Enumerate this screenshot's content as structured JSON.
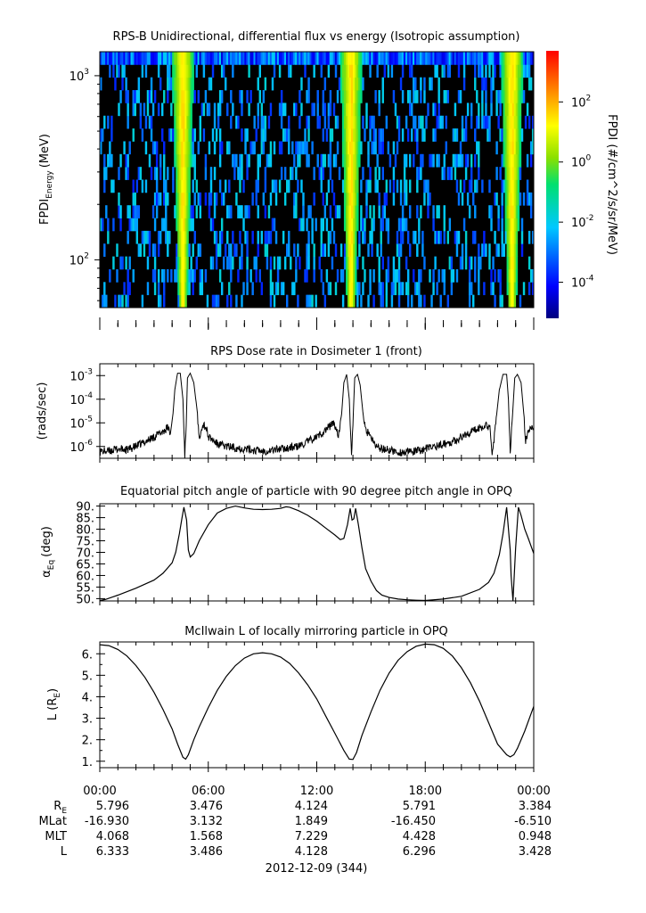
{
  "figure": {
    "x_axis": {
      "tick_labels": [
        "00:00",
        "06:00",
        "12:00",
        "18:00",
        "00:00"
      ],
      "date_label": "2012-12-09 (344)"
    }
  },
  "ephemeris": {
    "rows": [
      {
        "label": "R",
        "label_sub": "E",
        "values": [
          "5.796",
          "3.476",
          "4.124",
          "5.791",
          "3.384"
        ]
      },
      {
        "label": "MLat",
        "label_sub": "",
        "values": [
          "-16.930",
          "3.132",
          "1.849",
          "-16.450",
          "-6.510"
        ]
      },
      {
        "label": "MLT",
        "label_sub": "",
        "values": [
          "4.068",
          "1.568",
          "7.229",
          "4.428",
          "0.948"
        ]
      },
      {
        "label": "L",
        "label_sub": "",
        "values": [
          "6.333",
          "3.486",
          "4.128",
          "6.296",
          "3.428"
        ]
      }
    ]
  },
  "chart_data": [
    {
      "type": "heatmap",
      "title": "RPS-B  Unidirectional, differential flux vs energy (Isotropic assumption)",
      "ylabel": "FPDI",
      "ylabel_sub": "Energy",
      "ylabel_unit": "(MeV)",
      "y_scale": "log",
      "yticks": [
        {
          "value": 100,
          "base": "10",
          "exp": "2"
        },
        {
          "value": 1000,
          "base": "10",
          "exp": "3"
        }
      ],
      "ylim": [
        55,
        1350
      ],
      "x_hours": [
        0,
        24
      ],
      "colorbar": {
        "label": "FPDI (#/cm^2/s/sr/MeV)",
        "scale": "log",
        "ticks": [
          {
            "value": -4,
            "base": "10",
            "exp": "-4"
          },
          {
            "value": -2,
            "base": "10",
            "exp": "-2"
          },
          {
            "value": 0,
            "base": "10",
            "exp": "0"
          },
          {
            "value": 2,
            "base": "10",
            "exp": "2"
          }
        ],
        "range_log10": [
          -5.2,
          3.7
        ]
      },
      "features": {
        "belt_crossing_hours": [
          4.6,
          13.9,
          22.8
        ],
        "background": "sparse noise, black = no data"
      }
    },
    {
      "type": "line",
      "title": "RPS  Dose rate in Dosimeter 1 (front)",
      "ylabel": "(rads/sec)",
      "y_scale": "log",
      "yticks": [
        {
          "value": -6,
          "base": "10",
          "exp": "-6"
        },
        {
          "value": -5,
          "base": "10",
          "exp": "-5"
        },
        {
          "value": -4,
          "base": "10",
          "exp": "-4"
        },
        {
          "value": -3,
          "base": "10",
          "exp": "-3"
        }
      ],
      "ylim_log10": [
        -6.5,
        -2.5
      ],
      "x_hours": [
        0,
        24
      ],
      "series": [
        {
          "x": [
            0.0,
            0.5,
            1.0,
            1.5,
            2.0,
            2.5,
            3.0,
            3.5,
            3.8,
            3.9,
            4.05,
            4.15,
            4.3,
            4.45,
            4.6,
            4.7,
            4.78,
            4.85,
            5.0,
            5.2,
            5.4,
            5.5,
            5.6,
            5.75,
            5.9,
            6.0,
            6.2,
            6.5,
            7.0,
            8.0,
            9.0,
            10.0,
            11.0,
            11.5,
            12.0,
            12.5,
            12.9,
            13.05,
            13.2,
            13.35,
            13.5,
            13.65,
            13.8,
            13.92,
            14.0,
            14.1,
            14.25,
            14.4,
            14.6,
            14.75,
            14.85,
            15.0,
            15.2,
            15.5,
            16.0,
            16.5,
            17.0,
            17.5,
            18.0,
            18.5,
            19.0,
            19.5,
            20.0,
            20.5,
            21.0,
            21.4,
            21.6,
            21.7,
            21.9,
            22.1,
            22.3,
            22.5,
            22.6,
            22.7,
            22.8,
            22.95,
            23.1,
            23.3,
            23.45,
            23.55,
            23.7,
            23.85,
            24.0
          ],
          "y": [
            -6.2,
            -6.2,
            -6.1,
            -6.15,
            -6.0,
            -5.8,
            -5.6,
            -5.35,
            -5.2,
            -5.5,
            -4.6,
            -3.6,
            -2.9,
            -2.9,
            -4.0,
            -6.4,
            -5.0,
            -3.1,
            -2.9,
            -3.3,
            -4.6,
            -5.8,
            -5.2,
            -5.05,
            -5.25,
            -5.6,
            -5.7,
            -5.9,
            -6.0,
            -6.1,
            -6.2,
            -6.1,
            -6.0,
            -5.8,
            -5.6,
            -5.3,
            -5.0,
            -5.2,
            -5.5,
            -4.9,
            -3.3,
            -2.95,
            -4.0,
            -6.4,
            -5.0,
            -3.1,
            -2.95,
            -3.4,
            -4.9,
            -5.5,
            -5.3,
            -5.7,
            -5.9,
            -6.1,
            -6.15,
            -6.25,
            -6.25,
            -6.2,
            -6.1,
            -6.0,
            -5.9,
            -5.8,
            -5.6,
            -5.4,
            -5.2,
            -5.1,
            -5.2,
            -6.4,
            -5.0,
            -3.6,
            -2.95,
            -2.95,
            -4.0,
            -6.4,
            -5.0,
            -3.1,
            -2.95,
            -3.3,
            -4.6,
            -5.8,
            -5.3,
            -5.1,
            -5.2
          ]
        }
      ]
    },
    {
      "type": "line",
      "title": "Equatorial pitch angle of particle with 90 degree pitch angle in OPQ",
      "ylabel": "α",
      "ylabel_sub": "Eq",
      "ylabel_unit": "(deg)",
      "ytick_labels": [
        "50.",
        "55.",
        "60.",
        "65.",
        "70.",
        "75.",
        "80.",
        "85.",
        "90."
      ],
      "ylim": [
        49,
        91
      ],
      "x_hours": [
        0,
        24
      ],
      "series": [
        {
          "x": [
            0.0,
            0.3,
            1.0,
            2.0,
            3.0,
            3.5,
            4.0,
            4.2,
            4.4,
            4.55,
            4.65,
            4.8,
            4.9,
            5.0,
            5.2,
            5.5,
            6.0,
            6.5,
            7.0,
            7.5,
            8.0,
            8.5,
            9.0,
            9.5,
            10.0,
            10.3,
            10.5,
            11.0,
            11.5,
            12.0,
            12.5,
            13.0,
            13.3,
            13.5,
            13.7,
            13.85,
            13.95,
            14.05,
            14.15,
            14.3,
            14.5,
            14.7,
            15.0,
            15.3,
            15.6,
            16.0,
            16.5,
            17.0,
            17.5,
            18.0,
            19.0,
            20.0,
            21.0,
            21.5,
            21.8,
            22.1,
            22.3,
            22.5,
            22.7,
            22.75,
            22.85,
            23.0,
            23.15,
            23.3,
            23.5,
            23.7,
            24.0
          ],
          "y": [
            49.2,
            49.6,
            51.5,
            54.5,
            58.0,
            61.0,
            65.5,
            70.0,
            78.0,
            85.0,
            89.5,
            84.0,
            71.0,
            68.0,
            69.5,
            75.0,
            82.0,
            87.0,
            89.0,
            90.0,
            89.2,
            88.6,
            88.5,
            88.6,
            89.0,
            89.7,
            89.5,
            88.0,
            86.0,
            83.5,
            80.5,
            77.5,
            75.5,
            76.0,
            82.0,
            89.0,
            84.0,
            84.5,
            89.0,
            82.0,
            72.0,
            63.0,
            57.5,
            53.5,
            51.5,
            50.5,
            49.8,
            49.5,
            49.3,
            49.2,
            49.8,
            51.0,
            54.0,
            57.0,
            61.0,
            69.0,
            78.0,
            89.5,
            71.0,
            60.0,
            49.0,
            72.0,
            89.5,
            86.0,
            80.0,
            76.0,
            69.5
          ]
        }
      ]
    },
    {
      "type": "line",
      "title": "McIlwain L of locally mirroring particle in OPQ",
      "ylabel": "L (R",
      "ylabel_sub": "E",
      "ylabel_unit": ")",
      "ytick_labels": [
        "1.",
        "2.",
        "3.",
        "4.",
        "5.",
        "6."
      ],
      "ylim": [
        0.7,
        6.55
      ],
      "x_hours": [
        0,
        24
      ],
      "series": [
        {
          "x": [
            0.0,
            0.5,
            1.0,
            1.5,
            2.0,
            2.5,
            3.0,
            3.5,
            4.0,
            4.3,
            4.6,
            4.75,
            4.9,
            5.2,
            5.5,
            6.0,
            6.5,
            7.0,
            7.5,
            8.0,
            8.5,
            9.0,
            9.5,
            10.0,
            10.5,
            11.0,
            11.5,
            12.0,
            12.5,
            13.0,
            13.5,
            13.8,
            14.0,
            14.2,
            14.5,
            15.0,
            15.5,
            16.0,
            16.5,
            17.0,
            17.5,
            18.0,
            18.5,
            19.0,
            19.5,
            20.0,
            20.5,
            21.0,
            21.5,
            22.0,
            22.5,
            22.7,
            22.9,
            23.1,
            23.5,
            24.0
          ],
          "y": [
            6.42,
            6.38,
            6.2,
            5.9,
            5.45,
            4.9,
            4.2,
            3.4,
            2.5,
            1.8,
            1.18,
            1.1,
            1.3,
            2.0,
            2.6,
            3.5,
            4.3,
            4.95,
            5.45,
            5.8,
            6.0,
            6.05,
            6.0,
            5.85,
            5.55,
            5.1,
            4.55,
            3.9,
            3.1,
            2.3,
            1.5,
            1.1,
            1.08,
            1.4,
            2.2,
            3.3,
            4.3,
            5.1,
            5.7,
            6.1,
            6.35,
            6.45,
            6.42,
            6.25,
            5.9,
            5.35,
            4.65,
            3.8,
            2.8,
            1.8,
            1.3,
            1.2,
            1.3,
            1.6,
            2.4,
            3.55
          ]
        }
      ]
    }
  ]
}
